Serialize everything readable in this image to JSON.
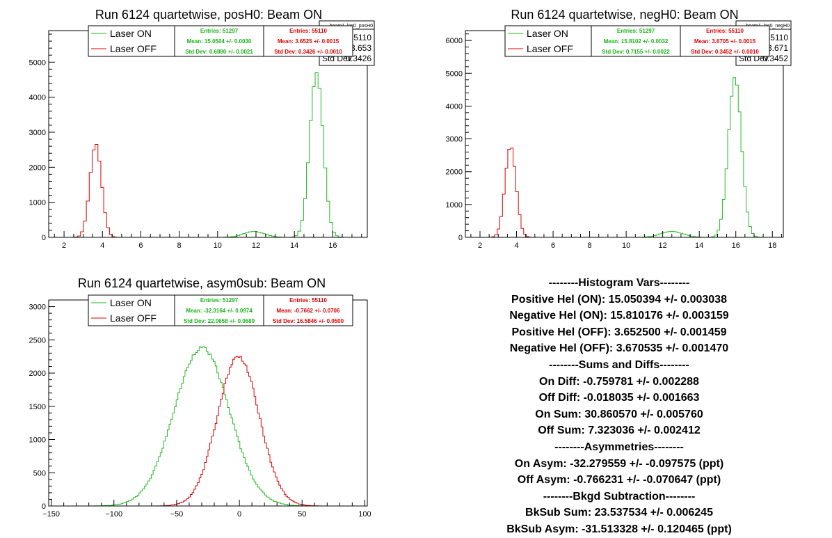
{
  "colors": {
    "laser_on": "#22bb22",
    "laser_off": "#dd0000",
    "stat_on": "#18b418",
    "stat_off": "#e00000"
  },
  "chart_data": [
    {
      "type": "histogram",
      "title": "Run 6124 quartetwise, posH0: Beam ON",
      "xlim": [
        1.2,
        17.8
      ],
      "ylim": [
        0,
        5900
      ],
      "x_ticks": [
        2,
        4,
        6,
        8,
        10,
        12,
        14,
        16
      ],
      "y_ticks": [
        0,
        1000,
        2000,
        3000,
        4000,
        5000
      ],
      "legend": [
        "Laser ON",
        "Laser OFF"
      ],
      "stats_on": {
        "entries": "Entries: 51297",
        "mean": "Mean: 15.0504 +/- 0.0030",
        "std": "Std Dev: 0.6880 +/- 0.0021"
      },
      "stats_off": {
        "entries": "Entries: 55110",
        "mean": "Mean: 3.6525 +/- 0.0015",
        "std": "Std Dev: 0.3426 +/- 0.0010"
      },
      "statbox": {
        "name": "beam1_las0_posH0",
        "entries": "55110",
        "mean": "3.653",
        "std_label": "Std Dev",
        "std": "0.3426"
      },
      "series": [
        {
          "name": "Laser ON",
          "components": [
            {
              "mean": 15.15,
              "sigma": 0.35,
              "peak": 4700
            },
            {
              "mean": 11.9,
              "sigma": 0.55,
              "peak": 170
            }
          ]
        },
        {
          "name": "Laser OFF",
          "components": [
            {
              "mean": 3.65,
              "sigma": 0.3,
              "peak": 2680
            }
          ]
        }
      ]
    },
    {
      "type": "histogram",
      "title": "Run 6124 quartetwise, negH0: Beam ON",
      "xlim": [
        1.2,
        18.6
      ],
      "ylim": [
        0,
        6300
      ],
      "x_ticks": [
        2,
        4,
        6,
        8,
        10,
        12,
        14,
        16,
        18
      ],
      "y_ticks": [
        0,
        1000,
        2000,
        3000,
        4000,
        5000,
        6000
      ],
      "legend": [
        "Laser ON",
        "Laser OFF"
      ],
      "stats_on": {
        "entries": "Entries: 51297",
        "mean": "Mean: 15.8102 +/- 0.0032",
        "std": "Std Dev: 0.7155 +/- 0.0022"
      },
      "stats_off": {
        "entries": "Entries: 55110",
        "mean": "Mean: 3.6705 +/- 0.0015",
        "std": "Std Dev: 0.3452 +/- 0.0010"
      },
      "statbox": {
        "name": "beam1_las0_negH0",
        "entries": "55110",
        "mean": "3.671",
        "std_label": "Std Dev",
        "std": "0.3452"
      },
      "series": [
        {
          "name": "Laser ON",
          "components": [
            {
              "mean": 15.95,
              "sigma": 0.36,
              "peak": 4900
            },
            {
              "mean": 12.5,
              "sigma": 0.6,
              "peak": 180
            }
          ]
        },
        {
          "name": "Laser OFF",
          "components": [
            {
              "mean": 3.67,
              "sigma": 0.3,
              "peak": 2790
            }
          ]
        }
      ]
    },
    {
      "type": "histogram",
      "title": "Run 6124 quartetwise, asym0sub: Beam ON",
      "xlim": [
        -152,
        102
      ],
      "ylim": [
        0,
        3100
      ],
      "x_ticks": [
        -150,
        -100,
        -50,
        0,
        50,
        100
      ],
      "y_ticks": [
        0,
        500,
        1000,
        1500,
        2000,
        2500,
        3000
      ],
      "legend": [
        "Laser ON",
        "Laser OFF"
      ],
      "stats_on": {
        "entries": "Entries: 51297",
        "mean": "Mean: -32.3164 +/- 0.0974",
        "std": "Std Dev: 22.0658 +/- 0.0689"
      },
      "stats_off": {
        "entries": "Entries: 55110",
        "mean": "Mean: -0.7662 +/- 0.0706",
        "std": "Std Dev: 16.5846 +/- 0.0500"
      },
      "series": [
        {
          "name": "Laser ON",
          "components": [
            {
              "mean": -30,
              "sigma": 22,
              "peak": 2380
            }
          ]
        },
        {
          "name": "Laser OFF",
          "components": [
            {
              "mean": -0.8,
              "sigma": 16.6,
              "peak": 2250
            }
          ]
        }
      ]
    }
  ],
  "vars_panel": {
    "lines": [
      "--------Histogram Vars--------",
      "Positive Hel (ON): 15.050394 +/- 0.003038",
      "Negative Hel (ON): 15.810176 +/- 0.003159",
      "Positive Hel (OFF): 3.652500 +/- 0.001459",
      "Negative Hel (OFF): 3.670535 +/- 0.001470",
      "--------Sums and Diffs--------",
      "On Diff: -0.759781 +/- 0.002288",
      "Off Diff: -0.018035 +/- 0.001663",
      "On Sum: 30.860570 +/- 0.005760",
      "Off Sum: 7.323036 +/- 0.002412",
      "--------Asymmetries--------",
      "On Asym: -32.279559 +/- -0.097575 (ppt)",
      "Off Asym: -0.766231 +/- -0.070647 (ppt)",
      "--------Bkgd Subtraction--------",
      "BkSub Sum: 23.537534 +/- 0.006245",
      "BkSub Asym: -31.513328 +/- 0.120465 (ppt)"
    ]
  }
}
